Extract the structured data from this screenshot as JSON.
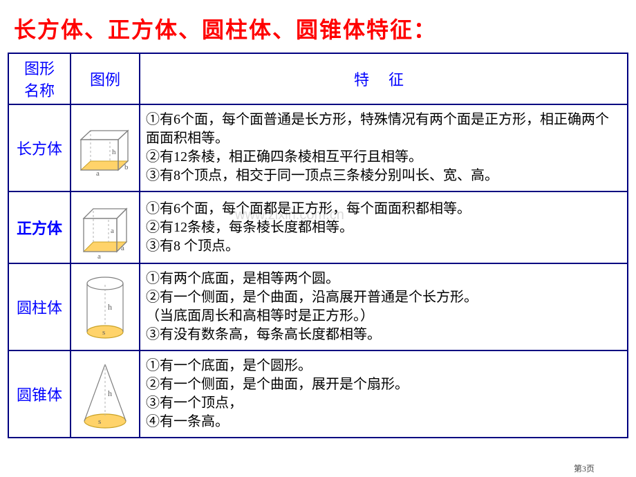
{
  "title": "长方体、正方体、圆柱体、圆锥体特征：",
  "title_color": "#ff0000",
  "border_color": "#000080",
  "header_text_color": "#0000ff",
  "name_text_color": "#0000ff",
  "feature_text_color": "#000000",
  "watermark": "www.zixin.com.cn",
  "page_label": "第3页",
  "columns": {
    "name": "图形\n名称",
    "illus": "图例",
    "feat": "特征"
  },
  "illus_colors": {
    "line": "#808080",
    "dash": "#b0b0b0",
    "base_fill": "#ffd36a",
    "base_stroke": "#c9a227",
    "label": "#606060"
  },
  "rows": [
    {
      "name": "长方体",
      "name_bold": false,
      "illus": "cuboid",
      "lines": [
        "①有6个面，每个面普通是长方形，特殊情况有两个面是正方形，相正确两个面面积相等。",
        "②有12条棱，相正确四条棱相互平行且相等。",
        "③有8个顶点，相交于同一顶点三条棱分别叫长、宽、高。"
      ]
    },
    {
      "name": "正方体",
      "name_bold": true,
      "illus": "cube",
      "lines": [
        "①有6个面，每个面都是正方形，每个面面积都相等。",
        "②有12条棱，每条棱长度都相等。",
        "③有8  个顶点。"
      ]
    },
    {
      "name": "圆柱体",
      "name_bold": false,
      "illus": "cylinder",
      "lines": [
        "①有两个底面，是相等两个圆。",
        "②有一个侧面，是个曲面，沿高展开普通是个长方形。",
        "（当底面周长和高相等时是正方形。）",
        "③有没有数条高，每条高长度都相等。"
      ]
    },
    {
      "name": "圆锥体",
      "name_bold": false,
      "illus": "cone",
      "lines": [
        "①有一个底面，是个圆形。",
        "②有一个侧面，是个曲面，展开是个扇形。",
        "③有一个顶点，",
        "④有一条高。"
      ]
    }
  ]
}
